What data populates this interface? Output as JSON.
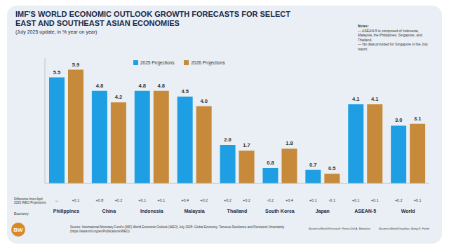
{
  "chart_data": {
    "type": "bar",
    "title": "IMF'S WORLD ECONOMIC OUTLOOK GROWTH FORECASTS FOR SELECT EAST AND SOUTHEAST ASIAN ECONOMIES",
    "subtitle": "(July 2025 update, in % year on year)",
    "categories": [
      "Philippines",
      "China",
      "Indonesia",
      "Malaysia",
      "Thailand",
      "South Korea",
      "Japan",
      "ASEAN-5",
      "World"
    ],
    "series": [
      {
        "name": "2025 Projections",
        "color": "#1e9fe3",
        "values": [
          5.5,
          4.8,
          4.8,
          4.5,
          2.0,
          0.8,
          0.7,
          4.1,
          3.0
        ],
        "value_labels": [
          "5.5",
          "4.8",
          "4.8",
          "4.5",
          "2.0",
          "0.8",
          "0.7",
          "4.1",
          "3.0"
        ],
        "differences": [
          "↔",
          "+0.8",
          "+0.1",
          "+0.4",
          "+0.2",
          "-0.2",
          "+0.1",
          "+0.1",
          "+0.2"
        ]
      },
      {
        "name": "2026 Projections",
        "color": "#c68a3a",
        "values": [
          5.9,
          4.2,
          4.8,
          4.0,
          1.7,
          1.8,
          0.5,
          4.1,
          3.1
        ],
        "value_labels": [
          "5.9",
          "4.2",
          "4.8",
          "4.0",
          "1.7",
          "1.8",
          "0.5",
          "4.1",
          "3.1"
        ],
        "differences": [
          "+0.1",
          "+0.2",
          "+0.1",
          "+0.2",
          "+0.2",
          "+0.4",
          "-0.1",
          "+0.1",
          "+0.1"
        ]
      }
    ],
    "row_labels": [
      "Difference from April 2025 WEO Projections",
      "Economy"
    ],
    "notes": [
      "Notes:",
      "— ASEAN-5 is composed of Indonesia, Malaysia, the Philippines, Singapore, and Thailand.",
      "— No data provided for Singapore in the July report."
    ],
    "source": "Source: International Monetary Fund's (IMF) World Economic Outlook (WEO) July 2025: Global Economy: Tenuous Resilience and Persistent Uncertainty (https://www.imf.org/en/Publications/WEO)",
    "credits": [
      "BusinessWorld Research: Pierce Del A. Montalvo",
      "BusinessWorld Graphics: Bong R. Fortin"
    ],
    "logo": "BW",
    "ylim": [
      0,
      6.5
    ],
    "yticks": [
      0
    ],
    "grid": false,
    "legend": "top",
    "data_labels": true,
    "tick_labels": "x"
  }
}
